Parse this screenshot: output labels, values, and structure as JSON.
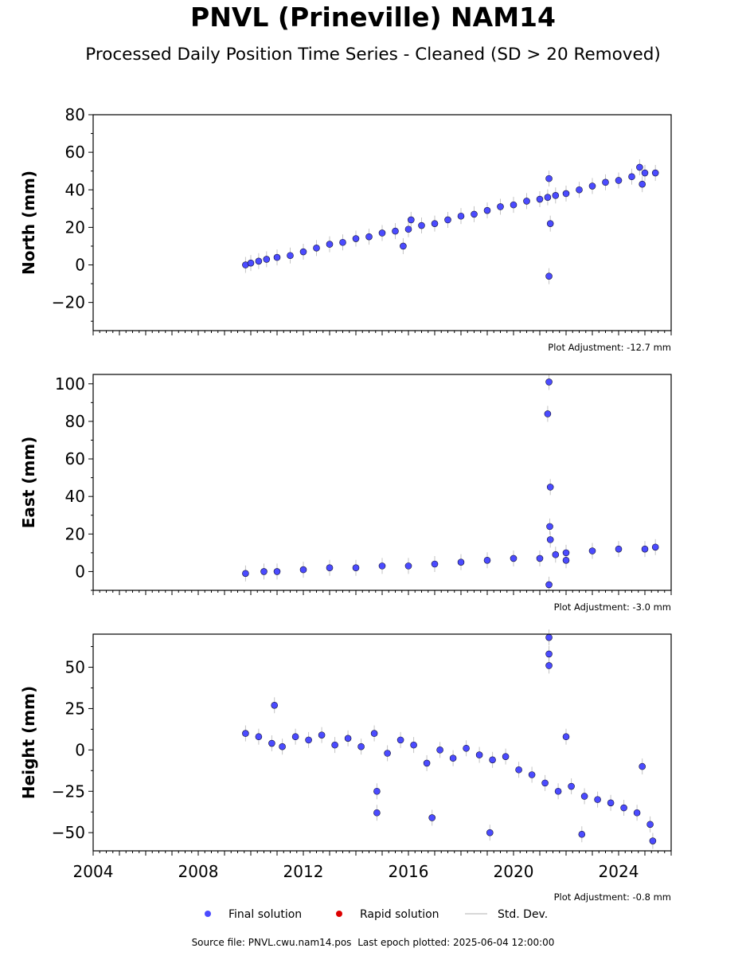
{
  "page": {
    "title": "PNVL (Prineville) NAM14",
    "subtitle": "Processed Daily Position Time Series - Cleaned (SD > 20 Removed)",
    "source_label": "Source file: PNVL.cwu.nam14.pos",
    "last_epoch_label": "Last epoch plotted: 2025-06-04 12:00:00"
  },
  "legend": [
    {
      "label": "Final solution",
      "color": "#4b4bff"
    },
    {
      "label": "Rapid solution",
      "color": "#dd0000"
    },
    {
      "label": "Std. Dev.",
      "color": "#cccccc"
    }
  ],
  "colors": {
    "final_fill": "#4b4bff",
    "marker_edge": "#111133",
    "rapid_fill": "#dd0000",
    "std_dev": "#aaaaaa"
  },
  "chart_data": [
    {
      "type": "scatter",
      "ylabel": "North (mm)",
      "adjustment_label": "Plot Adjustment: -12.7 mm",
      "xlim": [
        2004.0,
        2026.0
      ],
      "ylim": [
        -35,
        80
      ],
      "yticks": [
        -20,
        0,
        20,
        40,
        60,
        80
      ],
      "ytick_labels": [
        "−20",
        "0",
        "20",
        "40",
        "60",
        "80"
      ],
      "series": [
        {
          "name": "Final solution",
          "points": [
            [
              2009.8,
              0
            ],
            [
              2010.0,
              1
            ],
            [
              2010.3,
              2
            ],
            [
              2010.6,
              3
            ],
            [
              2011.0,
              4
            ],
            [
              2011.5,
              5
            ],
            [
              2012.0,
              7
            ],
            [
              2012.5,
              9
            ],
            [
              2013.0,
              11
            ],
            [
              2013.5,
              12
            ],
            [
              2014.0,
              14
            ],
            [
              2014.5,
              15
            ],
            [
              2015.0,
              17
            ],
            [
              2015.5,
              18
            ],
            [
              2016.0,
              19
            ],
            [
              2016.5,
              21
            ],
            [
              2017.0,
              22
            ],
            [
              2017.5,
              24
            ],
            [
              2018.0,
              26
            ],
            [
              2018.5,
              27
            ],
            [
              2019.0,
              29
            ],
            [
              2019.5,
              31
            ],
            [
              2020.0,
              32
            ],
            [
              2020.5,
              34
            ],
            [
              2021.0,
              35
            ],
            [
              2021.3,
              36
            ],
            [
              2021.6,
              37
            ],
            [
              2022.0,
              38
            ],
            [
              2022.5,
              40
            ],
            [
              2023.0,
              42
            ],
            [
              2023.5,
              44
            ],
            [
              2024.0,
              45
            ],
            [
              2024.5,
              47
            ],
            [
              2025.0,
              49
            ],
            [
              2025.4,
              49
            ],
            [
              2015.8,
              10
            ],
            [
              2016.1,
              24
            ],
            [
              2021.35,
              -6
            ],
            [
              2021.35,
              46
            ],
            [
              2021.4,
              22
            ],
            [
              2024.9,
              43
            ],
            [
              2024.8,
              52
            ]
          ]
        }
      ]
    },
    {
      "type": "scatter",
      "ylabel": "East (mm)",
      "adjustment_label": "Plot Adjustment: -3.0 mm",
      "xlim": [
        2004.0,
        2026.0
      ],
      "ylim": [
        -10,
        105
      ],
      "yticks": [
        0,
        20,
        40,
        60,
        80,
        100
      ],
      "ytick_labels": [
        "0",
        "20",
        "40",
        "60",
        "80",
        "100"
      ],
      "series": [
        {
          "name": "Final solution",
          "points": [
            [
              2009.8,
              -1
            ],
            [
              2010.5,
              0
            ],
            [
              2011.0,
              0
            ],
            [
              2012.0,
              1
            ],
            [
              2013.0,
              2
            ],
            [
              2014.0,
              2
            ],
            [
              2015.0,
              3
            ],
            [
              2016.0,
              3
            ],
            [
              2017.0,
              4
            ],
            [
              2018.0,
              5
            ],
            [
              2019.0,
              6
            ],
            [
              2020.0,
              7
            ],
            [
              2021.0,
              7
            ],
            [
              2021.6,
              9
            ],
            [
              2022.0,
              10
            ],
            [
              2023.0,
              11
            ],
            [
              2024.0,
              12
            ],
            [
              2025.0,
              12
            ],
            [
              2025.4,
              13
            ],
            [
              2021.35,
              101
            ],
            [
              2021.3,
              84
            ],
            [
              2021.4,
              45
            ],
            [
              2021.38,
              24
            ],
            [
              2021.4,
              17
            ],
            [
              2021.35,
              -7
            ],
            [
              2022.0,
              6
            ]
          ]
        }
      ]
    },
    {
      "type": "scatter",
      "ylabel": "Height (mm)",
      "adjustment_label": "Plot Adjustment: -0.8 mm",
      "xlim": [
        2004.0,
        2026.0
      ],
      "ylim": [
        -61,
        70
      ],
      "yticks": [
        -50,
        -25,
        0,
        25,
        50
      ],
      "ytick_labels": [
        "−50",
        "−25",
        "0",
        "25",
        "50"
      ],
      "xticks": [
        2004,
        2008,
        2012,
        2016,
        2020,
        2024
      ],
      "xtick_labels": [
        "2004",
        "2008",
        "2012",
        "2016",
        "2020",
        "2024"
      ],
      "series": [
        {
          "name": "Final solution",
          "points": [
            [
              2009.8,
              10
            ],
            [
              2010.3,
              8
            ],
            [
              2010.8,
              4
            ],
            [
              2011.2,
              2
            ],
            [
              2011.7,
              8
            ],
            [
              2012.2,
              6
            ],
            [
              2012.7,
              9
            ],
            [
              2013.2,
              3
            ],
            [
              2013.7,
              7
            ],
            [
              2014.2,
              2
            ],
            [
              2014.7,
              10
            ],
            [
              2015.2,
              -2
            ],
            [
              2015.7,
              6
            ],
            [
              2016.2,
              3
            ],
            [
              2016.7,
              -8
            ],
            [
              2017.2,
              0
            ],
            [
              2017.7,
              -5
            ],
            [
              2018.2,
              1
            ],
            [
              2018.7,
              -3
            ],
            [
              2019.2,
              -6
            ],
            [
              2019.7,
              -4
            ],
            [
              2020.2,
              -12
            ],
            [
              2020.7,
              -15
            ],
            [
              2021.2,
              -20
            ],
            [
              2021.7,
              -25
            ],
            [
              2022.2,
              -22
            ],
            [
              2022.7,
              -28
            ],
            [
              2023.2,
              -30
            ],
            [
              2023.7,
              -32
            ],
            [
              2024.2,
              -35
            ],
            [
              2024.7,
              -38
            ],
            [
              2025.2,
              -45
            ],
            [
              2010.9,
              27
            ],
            [
              2014.8,
              -25
            ],
            [
              2014.8,
              -38
            ],
            [
              2016.9,
              -41
            ],
            [
              2019.1,
              -50
            ],
            [
              2022.6,
              -51
            ],
            [
              2021.35,
              68
            ],
            [
              2021.35,
              58
            ],
            [
              2021.35,
              51
            ],
            [
              2022.0,
              8
            ],
            [
              2024.9,
              -10
            ],
            [
              2025.3,
              -55
            ]
          ]
        }
      ]
    }
  ]
}
